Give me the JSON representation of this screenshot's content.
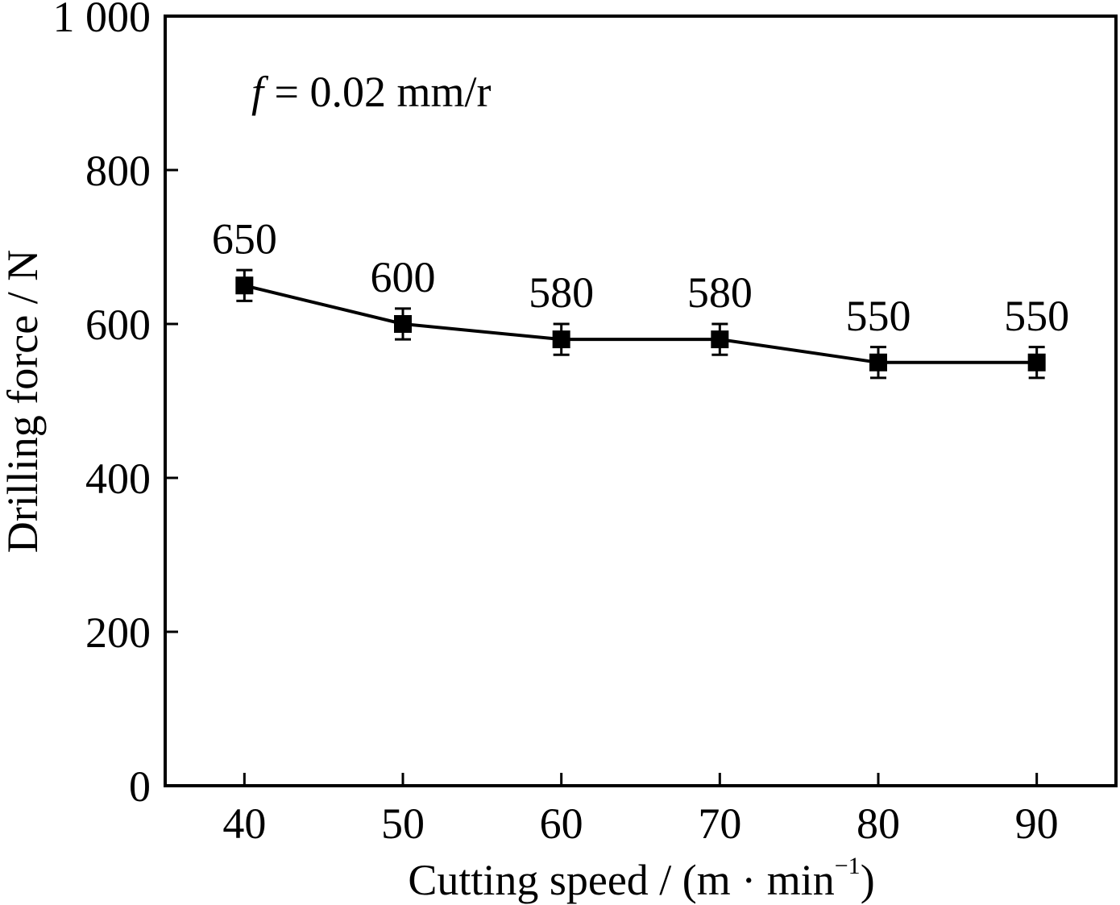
{
  "chart_data": {
    "type": "line",
    "title": "",
    "xlabel": "Cutting speed / (m · min",
    "xlabel_superscript": "−1",
    "xlabel_close": ")",
    "ylabel": "Drilling force / N",
    "annotation": {
      "variable": "f",
      "text": " = 0.02 mm/r"
    },
    "x": [
      40,
      50,
      60,
      70,
      80,
      90
    ],
    "x_tick_labels": [
      "40",
      "50",
      "60",
      "70",
      "80",
      "90"
    ],
    "xlim": [
      35,
      95
    ],
    "ylim": [
      0,
      1000
    ],
    "y_ticks": [
      0,
      200,
      400,
      600,
      800,
      1000
    ],
    "y_tick_labels": [
      "0",
      "200",
      "400",
      "600",
      "800",
      "1 000"
    ],
    "series": [
      {
        "values": [
          650,
          600,
          580,
          580,
          550,
          550
        ],
        "error": [
          20,
          20,
          20,
          20,
          20,
          20
        ],
        "data_labels": [
          "650",
          "600",
          "580",
          "580",
          "550",
          "550"
        ],
        "color": "#000000",
        "marker": "square"
      }
    ],
    "grid": false,
    "legend": "none"
  }
}
